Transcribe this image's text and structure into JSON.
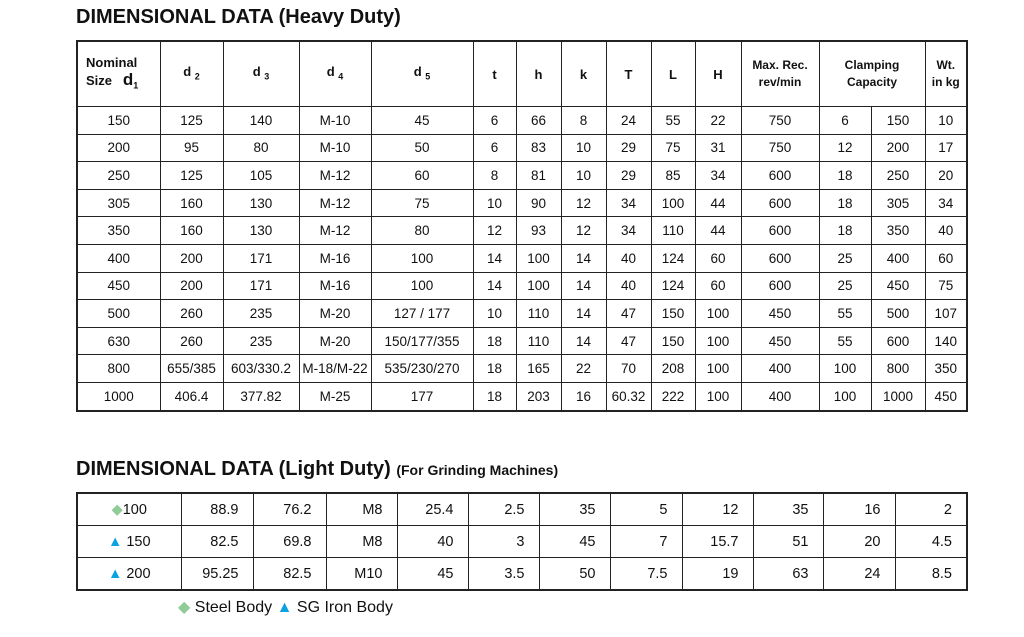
{
  "heavy": {
    "title": "DIMENSIONAL DATA (Heavy Duty)",
    "headers": {
      "nominal_1": "Nominal",
      "nominal_2": "Size",
      "d1": "d",
      "d1_sub": "1",
      "d2": "d",
      "d2_sub": "2",
      "d3": "d",
      "d3_sub": "3",
      "d4": "d",
      "d4_sub": "4",
      "d5": "d",
      "d5_sub": "5",
      "t": "t",
      "h": "h",
      "k": "k",
      "T": "T",
      "L": "L",
      "H": "H",
      "maxrec_1": "Max. Rec.",
      "maxrec_2": "rev/min",
      "clamp_1": "Clamping",
      "clamp_2": "Capacity",
      "wt_1": "Wt.",
      "wt_2": "in kg"
    },
    "rows": [
      [
        "150",
        "125",
        "140",
        "M-10",
        "45",
        "6",
        "66",
        "8",
        "24",
        "55",
        "22",
        "750",
        "6",
        "150",
        "10"
      ],
      [
        "200",
        "95",
        "80",
        "M-10",
        "50",
        "6",
        "83",
        "10",
        "29",
        "75",
        "31",
        "750",
        "12",
        "200",
        "17"
      ],
      [
        "250",
        "125",
        "105",
        "M-12",
        "60",
        "8",
        "81",
        "10",
        "29",
        "85",
        "34",
        "600",
        "18",
        "250",
        "20"
      ],
      [
        "305",
        "160",
        "130",
        "M-12",
        "75",
        "10",
        "90",
        "12",
        "34",
        "100",
        "44",
        "600",
        "18",
        "305",
        "34"
      ],
      [
        "350",
        "160",
        "130",
        "M-12",
        "80",
        "12",
        "93",
        "12",
        "34",
        "110",
        "44",
        "600",
        "18",
        "350",
        "40"
      ],
      [
        "400",
        "200",
        "171",
        "M-16",
        "100",
        "14",
        "100",
        "14",
        "40",
        "124",
        "60",
        "600",
        "25",
        "400",
        "60"
      ],
      [
        "450",
        "200",
        "171",
        "M-16",
        "100",
        "14",
        "100",
        "14",
        "40",
        "124",
        "60",
        "600",
        "25",
        "450",
        "75"
      ],
      [
        "500",
        "260",
        "235",
        "M-20",
        "127 / 177",
        "10",
        "110",
        "14",
        "47",
        "150",
        "100",
        "450",
        "55",
        "500",
        "107"
      ],
      [
        "630",
        "260",
        "235",
        "M-20",
        "150/177/355",
        "18",
        "110",
        "14",
        "47",
        "150",
        "100",
        "450",
        "55",
        "600",
        "140"
      ],
      [
        "800",
        "655/385",
        "603/330.2",
        "M-18/M-22",
        "535/230/270",
        "18",
        "165",
        "22",
        "70",
        "208",
        "100",
        "400",
        "100",
        "800",
        "350"
      ],
      [
        "1000",
        "406.4",
        "377.82",
        "M-25",
        "177",
        "18",
        "203",
        "16",
        "60.32",
        "222",
        "100",
        "400",
        "100",
        "1000",
        "450"
      ]
    ]
  },
  "light": {
    "title": "DIMENSIONAL DATA (Light Duty)",
    "subtitle": "(For Grinding Machines)",
    "rows": [
      {
        "marker": "diamond",
        "cells": [
          "100",
          "88.9",
          "76.2",
          "M8",
          "25.4",
          "2.5",
          "35",
          "5",
          "12",
          "35",
          "16",
          "2"
        ]
      },
      {
        "marker": "triangle",
        "cells": [
          "150",
          "82.5",
          "69.8",
          "M8",
          "40",
          "3",
          "45",
          "7",
          "15.7",
          "51",
          "20",
          "4.5"
        ]
      },
      {
        "marker": "triangle",
        "cells": [
          "200",
          "95.25",
          "82.5",
          "M10",
          "45",
          "3.5",
          "50",
          "7.5",
          "19",
          "63",
          "24",
          "8.5"
        ]
      }
    ]
  },
  "legend": {
    "steel": "Steel Body",
    "sg": "SG Iron Body"
  },
  "colors": {
    "steel": "#8fcc98",
    "sg": "#0aa2e0"
  }
}
